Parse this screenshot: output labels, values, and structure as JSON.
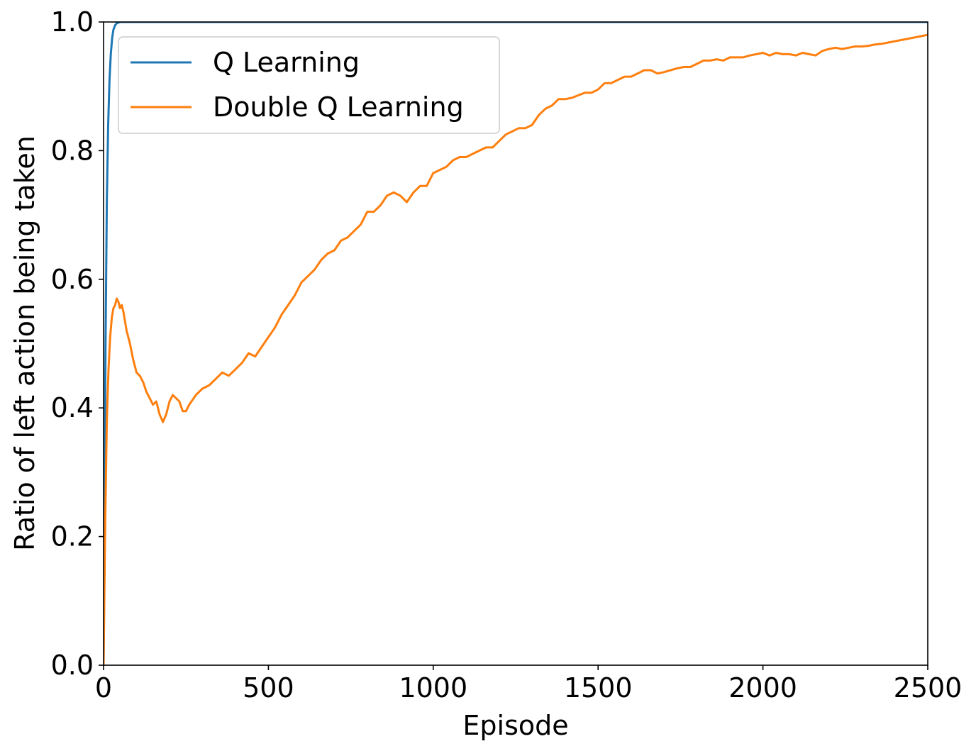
{
  "chart_data": {
    "type": "line",
    "title": "",
    "xlabel": "Episode",
    "ylabel": "Ratio of left action being taken",
    "xlim": [
      0,
      2500
    ],
    "ylim": [
      0.0,
      1.0
    ],
    "x_ticks": [
      "0",
      "500",
      "1000",
      "1500",
      "2000",
      "2500"
    ],
    "y_ticks": [
      "0.0",
      "0.2",
      "0.4",
      "0.6",
      "0.8",
      "1.0"
    ],
    "grid": false,
    "legend_position": "upper-left",
    "series": [
      {
        "name": "Q Learning",
        "color": "#1f77b4",
        "x": [
          0,
          3,
          6,
          10,
          14,
          18,
          22,
          26,
          30,
          35,
          40,
          50,
          60,
          80,
          120,
          200,
          500,
          1000,
          1500,
          2000,
          2500
        ],
        "y": [
          0.0,
          0.25,
          0.5,
          0.72,
          0.84,
          0.91,
          0.95,
          0.975,
          0.988,
          0.995,
          0.998,
          1.0,
          1.0,
          1.0,
          1.0,
          1.0,
          1.0,
          1.0,
          1.0,
          1.0,
          1.0
        ]
      },
      {
        "name": "Double Q Learning",
        "color": "#ff7f0e",
        "x": [
          0,
          5,
          10,
          15,
          20,
          25,
          30,
          35,
          40,
          45,
          50,
          55,
          60,
          70,
          80,
          90,
          100,
          110,
          120,
          130,
          140,
          150,
          160,
          170,
          180,
          190,
          200,
          210,
          220,
          230,
          240,
          250,
          260,
          280,
          300,
          320,
          340,
          360,
          380,
          400,
          420,
          440,
          460,
          480,
          500,
          520,
          540,
          560,
          580,
          600,
          620,
          640,
          660,
          680,
          700,
          720,
          740,
          760,
          780,
          800,
          820,
          840,
          860,
          880,
          900,
          920,
          940,
          960,
          980,
          1000,
          1020,
          1040,
          1060,
          1080,
          1100,
          1120,
          1140,
          1160,
          1180,
          1200,
          1220,
          1240,
          1260,
          1280,
          1300,
          1320,
          1340,
          1360,
          1380,
          1400,
          1420,
          1440,
          1460,
          1480,
          1500,
          1520,
          1540,
          1560,
          1580,
          1600,
          1620,
          1640,
          1660,
          1680,
          1700,
          1720,
          1740,
          1760,
          1780,
          1800,
          1820,
          1840,
          1860,
          1880,
          1900,
          1920,
          1940,
          1960,
          1980,
          2000,
          2020,
          2040,
          2060,
          2080,
          2100,
          2120,
          2140,
          2160,
          2180,
          2200,
          2220,
          2240,
          2260,
          2280,
          2300,
          2320,
          2340,
          2360,
          2380,
          2400,
          2420,
          2440,
          2460,
          2480,
          2500
        ],
        "y": [
          0.0,
          0.22,
          0.38,
          0.46,
          0.51,
          0.54,
          0.555,
          0.56,
          0.57,
          0.565,
          0.555,
          0.56,
          0.55,
          0.52,
          0.5,
          0.475,
          0.455,
          0.45,
          0.44,
          0.425,
          0.415,
          0.405,
          0.41,
          0.39,
          0.378,
          0.39,
          0.41,
          0.42,
          0.415,
          0.41,
          0.395,
          0.395,
          0.405,
          0.42,
          0.43,
          0.435,
          0.445,
          0.455,
          0.45,
          0.46,
          0.47,
          0.485,
          0.48,
          0.495,
          0.51,
          0.525,
          0.545,
          0.56,
          0.575,
          0.595,
          0.605,
          0.615,
          0.63,
          0.64,
          0.645,
          0.66,
          0.665,
          0.675,
          0.685,
          0.705,
          0.705,
          0.715,
          0.73,
          0.735,
          0.73,
          0.72,
          0.735,
          0.745,
          0.745,
          0.765,
          0.77,
          0.775,
          0.785,
          0.79,
          0.79,
          0.795,
          0.8,
          0.805,
          0.805,
          0.815,
          0.825,
          0.83,
          0.835,
          0.835,
          0.84,
          0.855,
          0.865,
          0.87,
          0.88,
          0.88,
          0.882,
          0.886,
          0.89,
          0.89,
          0.895,
          0.905,
          0.905,
          0.91,
          0.915,
          0.915,
          0.92,
          0.925,
          0.925,
          0.92,
          0.922,
          0.925,
          0.928,
          0.93,
          0.93,
          0.935,
          0.94,
          0.94,
          0.942,
          0.94,
          0.945,
          0.945,
          0.945,
          0.948,
          0.95,
          0.952,
          0.948,
          0.952,
          0.95,
          0.95,
          0.948,
          0.952,
          0.95,
          0.948,
          0.955,
          0.958,
          0.96,
          0.958,
          0.96,
          0.962,
          0.962,
          0.963,
          0.965,
          0.966,
          0.968,
          0.97,
          0.972,
          0.974,
          0.976,
          0.978,
          0.98
        ]
      }
    ]
  }
}
